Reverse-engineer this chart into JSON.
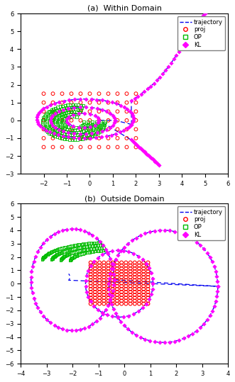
{
  "subplot_a": {
    "title": "(a)  Within Domain",
    "xlim": [
      -3,
      6
    ],
    "ylim": [
      -3,
      6
    ],
    "xticks": [
      -2,
      -1,
      0,
      1,
      2,
      3,
      4,
      5,
      6
    ],
    "yticks": [
      -3,
      -2,
      -1,
      0,
      1,
      2,
      3,
      4,
      5,
      6
    ]
  },
  "subplot_b": {
    "title": "(b)  Outside Domain",
    "xlim": [
      -4,
      4
    ],
    "ylim": [
      -6,
      6
    ],
    "xticks": [
      -4,
      -3,
      -2,
      -1,
      0,
      1,
      2,
      3,
      4
    ],
    "yticks": [
      -6,
      -5,
      -4,
      -3,
      -2,
      -1,
      0,
      1,
      2,
      3,
      4,
      5,
      6
    ]
  },
  "colors": {
    "trajectory": "#0000ee",
    "proj": "#ff0000",
    "OP": "#00bb00",
    "KL": "#ff00ff"
  }
}
